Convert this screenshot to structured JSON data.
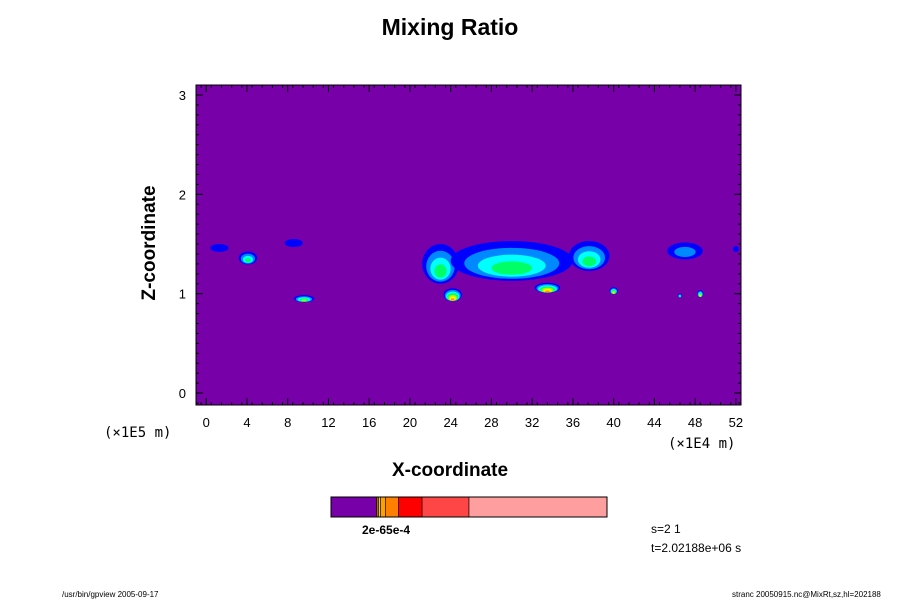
{
  "chart_data": {
    "type": "heatmap",
    "title": "Mixing Ratio",
    "xlabel": "X-coordinate",
    "ylabel": "Z-coordinate",
    "x_unit": "(×1E4 m)",
    "y_unit": "(×1E5 m)",
    "xlim": [
      -1,
      52.5
    ],
    "ylim": [
      -0.12,
      3.1
    ],
    "x_ticks": [
      0,
      4,
      8,
      12,
      16,
      20,
      24,
      28,
      32,
      36,
      40,
      44,
      48,
      52
    ],
    "y_ticks": [
      0,
      1,
      2,
      3
    ],
    "background_color": "#7700a8",
    "fill_colors": [
      "#0000ff",
      "#0088ff",
      "#00ffff",
      "#00ff66",
      "#aaff00",
      "#ffff00",
      "#ffa000",
      "#ff2200"
    ],
    "features": [
      {
        "x": 1.3,
        "z": 1.46,
        "w": 1.8,
        "h": 0.08,
        "level": 0
      },
      {
        "x": 4.1,
        "z": 1.36,
        "w": 1.8,
        "h": 0.13,
        "level": 3
      },
      {
        "x": 8.6,
        "z": 1.51,
        "w": 1.8,
        "h": 0.08,
        "level": 0
      },
      {
        "x": 9.6,
        "z": 0.95,
        "w": 2.0,
        "h": 0.07,
        "level": 4
      },
      {
        "x": 23.0,
        "z": 1.3,
        "w": 3.6,
        "h": 0.4,
        "level": 3
      },
      {
        "x": 30.0,
        "z": 1.33,
        "w": 12.0,
        "h": 0.4,
        "level": 3
      },
      {
        "x": 37.6,
        "z": 1.38,
        "w": 4.0,
        "h": 0.3,
        "level": 3
      },
      {
        "x": 47.0,
        "z": 1.43,
        "w": 3.5,
        "h": 0.17,
        "level": 1
      },
      {
        "x": 52.0,
        "z": 1.45,
        "w": 0.6,
        "h": 0.06,
        "level": 0
      },
      {
        "x": 24.2,
        "z": 0.99,
        "w": 1.8,
        "h": 0.13,
        "level": 6
      },
      {
        "x": 33.5,
        "z": 1.06,
        "w": 2.5,
        "h": 0.1,
        "level": 6
      },
      {
        "x": 40.0,
        "z": 1.03,
        "w": 0.8,
        "h": 0.07,
        "level": 5
      },
      {
        "x": 48.5,
        "z": 1.0,
        "w": 0.6,
        "h": 0.07,
        "level": 5
      },
      {
        "x": 46.5,
        "z": 0.98,
        "w": 0.4,
        "h": 0.04,
        "level": 3
      }
    ],
    "colorbar": {
      "colors": [
        "#7700a8",
        "#a07000",
        "#ffd000",
        "#ffa000",
        "#ff8000",
        "#ff0000",
        "#ff4646",
        "#ff9e9e"
      ],
      "stops": [
        0,
        0.165,
        0.172,
        0.18,
        0.197,
        0.245,
        0.33,
        0.5,
        1.0
      ],
      "label": "2e-65e-4"
    },
    "info": {
      "s": "s=2 1",
      "t": "t=2.02188e+06 s"
    }
  },
  "footer": {
    "left": "/usr/bin/gpview 2005-09-17",
    "right": "stranc 20050915.nc@MixRt,sz,hl=202188"
  }
}
